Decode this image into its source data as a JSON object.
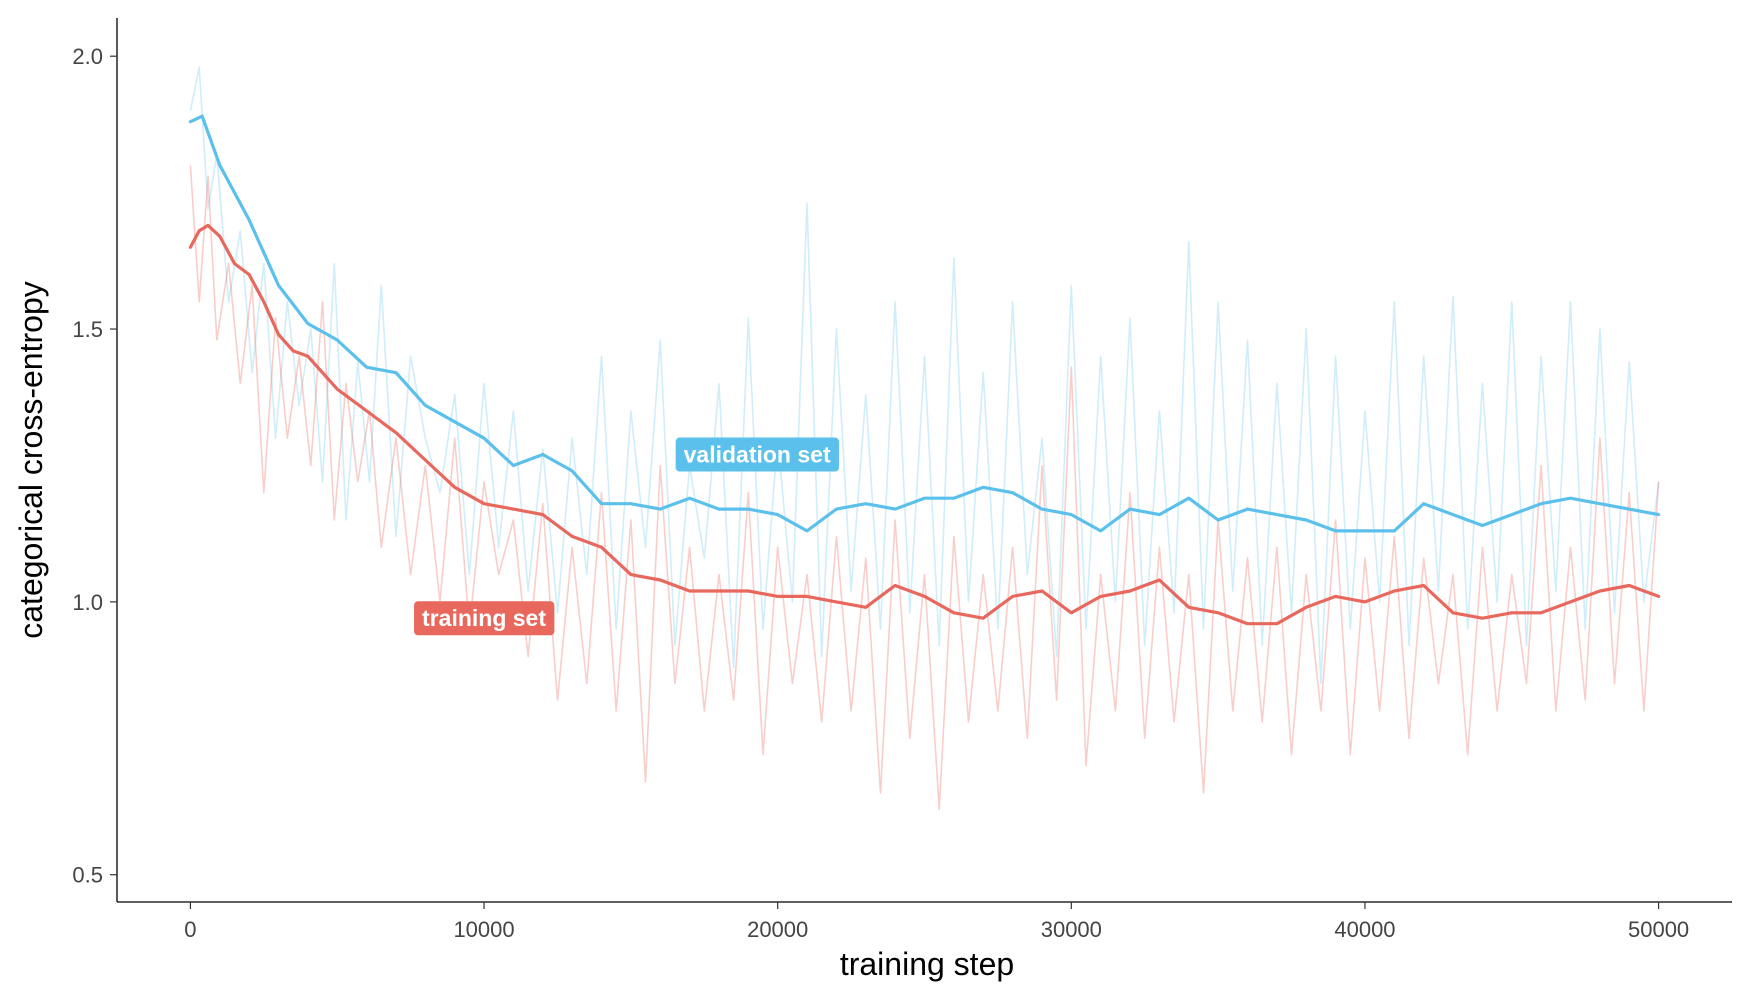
{
  "chart_data": {
    "type": "line",
    "xlabel": "training step",
    "ylabel": "categorical cross-entropy",
    "xlim": [
      -2500,
      52500
    ],
    "ylim": [
      0.45,
      2.07
    ],
    "x_ticks": [
      0,
      10000,
      20000,
      30000,
      40000,
      50000
    ],
    "x_tick_labels": [
      "0",
      "10000",
      "20000",
      "30000",
      "40000",
      "50000"
    ],
    "y_ticks": [
      0.5,
      1.0,
      1.5,
      2.0
    ],
    "y_tick_labels": [
      "0.5",
      "1.0",
      "1.5",
      "2.0"
    ],
    "grid": false,
    "legend": "none",
    "series": [
      {
        "name": "validation set",
        "color": "#5BC0EB",
        "label_at": [
          19300,
          1.27
        ],
        "smoothed": {
          "x": [
            0,
            400,
            1000,
            2000,
            3000,
            4000,
            5000,
            6000,
            7000,
            8000,
            9000,
            10000,
            11000,
            12000,
            13000,
            14000,
            15000,
            16000,
            17000,
            18000,
            19000,
            20000,
            21000,
            22000,
            23000,
            24000,
            25000,
            26000,
            27000,
            28000,
            29000,
            30000,
            31000,
            32000,
            33000,
            34000,
            35000,
            36000,
            37000,
            38000,
            39000,
            40000,
            41000,
            42000,
            43000,
            44000,
            45000,
            46000,
            47000,
            48000,
            49000,
            50000
          ],
          "y": [
            1.88,
            1.89,
            1.8,
            1.7,
            1.58,
            1.51,
            1.48,
            1.43,
            1.42,
            1.36,
            1.33,
            1.3,
            1.25,
            1.27,
            1.24,
            1.18,
            1.18,
            1.17,
            1.19,
            1.17,
            1.17,
            1.16,
            1.13,
            1.17,
            1.18,
            1.17,
            1.19,
            1.19,
            1.21,
            1.2,
            1.17,
            1.16,
            1.13,
            1.17,
            1.16,
            1.19,
            1.15,
            1.17,
            1.16,
            1.15,
            1.13,
            1.13,
            1.13,
            1.18,
            1.16,
            1.14,
            1.16,
            1.18,
            1.19,
            1.18,
            1.17,
            1.16
          ]
        },
        "raw": {
          "x": [
            0,
            300,
            600,
            900,
            1300,
            1700,
            2100,
            2500,
            2900,
            3300,
            3700,
            4100,
            4500,
            4900,
            5300,
            5700,
            6100,
            6500,
            7000,
            7500,
            8000,
            8500,
            9000,
            9500,
            10000,
            10500,
            11000,
            11500,
            12000,
            12500,
            13000,
            13500,
            14000,
            14500,
            15000,
            15500,
            16000,
            16500,
            17000,
            17500,
            18000,
            18500,
            19000,
            19500,
            20000,
            20500,
            21000,
            21500,
            22000,
            22500,
            23000,
            23500,
            24000,
            24500,
            25000,
            25500,
            26000,
            26500,
            27000,
            27500,
            28000,
            28500,
            29000,
            29500,
            30000,
            30500,
            31000,
            31500,
            32000,
            32500,
            33000,
            33500,
            34000,
            34500,
            35000,
            35500,
            36000,
            36500,
            37000,
            37500,
            38000,
            38500,
            39000,
            39500,
            40000,
            40500,
            41000,
            41500,
            42000,
            42500,
            43000,
            43500,
            44000,
            44500,
            45000,
            45500,
            46000,
            46500,
            47000,
            47500,
            48000,
            48500,
            49000,
            49500,
            50000
          ],
          "y": [
            1.9,
            1.98,
            1.72,
            1.82,
            1.55,
            1.68,
            1.42,
            1.62,
            1.3,
            1.55,
            1.36,
            1.5,
            1.22,
            1.62,
            1.15,
            1.44,
            1.22,
            1.58,
            1.12,
            1.45,
            1.3,
            1.2,
            1.38,
            1.05,
            1.4,
            1.1,
            1.35,
            1.02,
            1.28,
            0.98,
            1.3,
            1.05,
            1.45,
            0.95,
            1.35,
            1.1,
            1.48,
            0.92,
            1.25,
            1.08,
            1.4,
            0.88,
            1.52,
            0.95,
            1.3,
            1.0,
            1.73,
            0.9,
            1.5,
            1.02,
            1.38,
            0.95,
            1.55,
            0.98,
            1.45,
            0.92,
            1.63,
            1.0,
            1.42,
            0.95,
            1.55,
            1.05,
            1.3,
            0.9,
            1.58,
            0.95,
            1.45,
            1.0,
            1.52,
            0.92,
            1.35,
            0.98,
            1.66,
            0.95,
            1.55,
            1.02,
            1.48,
            0.92,
            1.4,
            0.98,
            1.5,
            0.85,
            1.45,
            0.95,
            1.35,
            1.0,
            1.55,
            0.92,
            1.45,
            1.02,
            1.56,
            0.95,
            1.4,
            1.0,
            1.55,
            0.92,
            1.45,
            1.02,
            1.55,
            0.95,
            1.5,
            0.98,
            1.44,
            1.0,
            1.22
          ]
        }
      },
      {
        "name": "training set",
        "color": "#E8685E",
        "label_at": [
          10000,
          0.97
        ],
        "smoothed": {
          "x": [
            0,
            300,
            600,
            1000,
            1500,
            2000,
            2500,
            3000,
            3500,
            4000,
            5000,
            6000,
            7000,
            8000,
            9000,
            10000,
            11000,
            12000,
            13000,
            14000,
            15000,
            16000,
            17000,
            18000,
            19000,
            20000,
            21000,
            22000,
            23000,
            24000,
            25000,
            26000,
            27000,
            28000,
            29000,
            30000,
            31000,
            32000,
            33000,
            34000,
            35000,
            36000,
            37000,
            38000,
            39000,
            40000,
            41000,
            42000,
            43000,
            44000,
            45000,
            46000,
            47000,
            48000,
            49000,
            50000
          ],
          "y": [
            1.65,
            1.68,
            1.69,
            1.67,
            1.62,
            1.6,
            1.55,
            1.49,
            1.46,
            1.45,
            1.39,
            1.35,
            1.31,
            1.26,
            1.21,
            1.18,
            1.17,
            1.16,
            1.12,
            1.1,
            1.05,
            1.04,
            1.02,
            1.02,
            1.02,
            1.01,
            1.01,
            1.0,
            0.99,
            1.03,
            1.01,
            0.98,
            0.97,
            1.01,
            1.02,
            0.98,
            1.01,
            1.02,
            1.04,
            0.99,
            0.98,
            0.96,
            0.96,
            0.99,
            1.01,
            1.0,
            1.02,
            1.03,
            0.98,
            0.97,
            0.98,
            0.98,
            1.0,
            1.02,
            1.03,
            1.01
          ]
        },
        "raw": {
          "x": [
            0,
            300,
            600,
            900,
            1300,
            1700,
            2100,
            2500,
            2900,
            3300,
            3700,
            4100,
            4500,
            4900,
            5300,
            5700,
            6100,
            6500,
            7000,
            7500,
            8000,
            8500,
            9000,
            9500,
            10000,
            10500,
            11000,
            11500,
            12000,
            12500,
            13000,
            13500,
            14000,
            14500,
            15000,
            15500,
            16000,
            16500,
            17000,
            17500,
            18000,
            18500,
            19000,
            19500,
            20000,
            20500,
            21000,
            21500,
            22000,
            22500,
            23000,
            23500,
            24000,
            24500,
            25000,
            25500,
            26000,
            26500,
            27000,
            27500,
            28000,
            28500,
            29000,
            29500,
            30000,
            30500,
            31000,
            31500,
            32000,
            32500,
            33000,
            33500,
            34000,
            34500,
            35000,
            35500,
            36000,
            36500,
            37000,
            37500,
            38000,
            38500,
            39000,
            39500,
            40000,
            40500,
            41000,
            41500,
            42000,
            42500,
            43000,
            43500,
            44000,
            44500,
            45000,
            45500,
            46000,
            46500,
            47000,
            47500,
            48000,
            48500,
            49000,
            49500,
            50000
          ],
          "y": [
            1.8,
            1.55,
            1.78,
            1.48,
            1.62,
            1.4,
            1.58,
            1.2,
            1.52,
            1.3,
            1.45,
            1.25,
            1.55,
            1.15,
            1.4,
            1.22,
            1.35,
            1.1,
            1.3,
            1.05,
            1.25,
            1.0,
            1.3,
            0.95,
            1.22,
            1.05,
            1.15,
            0.9,
            1.18,
            0.82,
            1.1,
            0.85,
            1.2,
            0.8,
            1.15,
            0.67,
            1.25,
            0.85,
            1.1,
            0.8,
            1.05,
            0.82,
            1.2,
            0.72,
            1.1,
            0.85,
            1.05,
            0.78,
            1.12,
            0.8,
            1.08,
            0.65,
            1.15,
            0.75,
            1.05,
            0.62,
            1.12,
            0.78,
            1.05,
            0.8,
            1.1,
            0.75,
            1.25,
            0.82,
            1.43,
            0.7,
            1.05,
            0.8,
            1.2,
            0.75,
            1.1,
            0.78,
            1.05,
            0.65,
            1.15,
            0.8,
            1.08,
            0.78,
            1.1,
            0.72,
            1.05,
            0.8,
            1.15,
            0.72,
            1.08,
            0.8,
            1.12,
            0.75,
            1.08,
            0.85,
            1.05,
            0.72,
            1.1,
            0.8,
            1.05,
            0.85,
            1.25,
            0.8,
            1.1,
            0.82,
            1.3,
            0.85,
            1.2,
            0.8,
            1.22
          ]
        }
      }
    ]
  }
}
